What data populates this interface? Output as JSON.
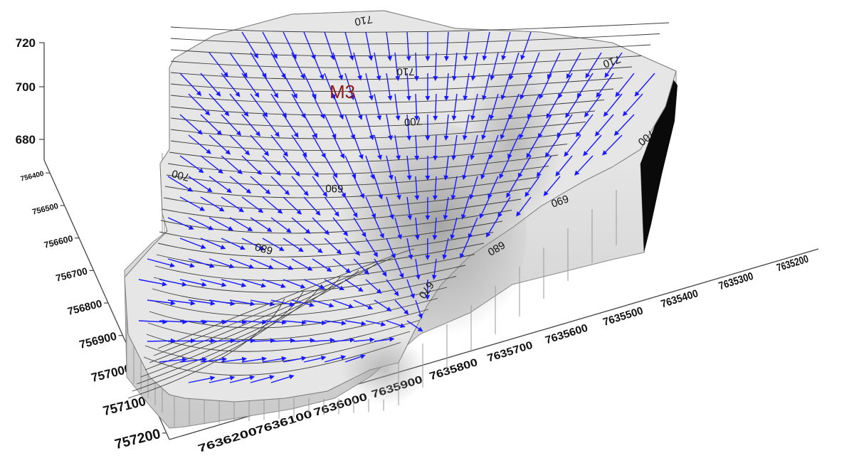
{
  "z_axis": {
    "ticks": [
      "720",
      "700",
      "680"
    ]
  },
  "y_axis": {
    "ticks": [
      "756400",
      "756500",
      "756600",
      "756700",
      "756800",
      "756900",
      "757000",
      "757100",
      "757200"
    ]
  },
  "x_axis": {
    "ticks": [
      "7636200",
      "7636100",
      "7636000",
      "7635900",
      "7635800",
      "7635700",
      "7635600",
      "7635500",
      "7635400",
      "7635300",
      "7635200"
    ]
  },
  "contour_labels": [
    {
      "id": "c710a",
      "text": "710"
    },
    {
      "id": "c710b",
      "text": "710"
    },
    {
      "id": "c710c",
      "text": "710"
    },
    {
      "id": "c700a",
      "text": "700"
    },
    {
      "id": "c700b",
      "text": "700"
    },
    {
      "id": "c700c",
      "text": "700"
    },
    {
      "id": "c690a",
      "text": "690"
    },
    {
      "id": "c690b",
      "text": "690"
    },
    {
      "id": "c680a",
      "text": "680"
    },
    {
      "id": "c680b",
      "text": "680"
    },
    {
      "id": "c670",
      "text": "670"
    }
  ],
  "marker": {
    "label": "M3"
  },
  "colors": {
    "surface": "#e6e6e6",
    "walls": "#d8d8d8",
    "arrows": "#1a1aff",
    "contours": "#333333",
    "marker": "#8b1a1a"
  }
}
